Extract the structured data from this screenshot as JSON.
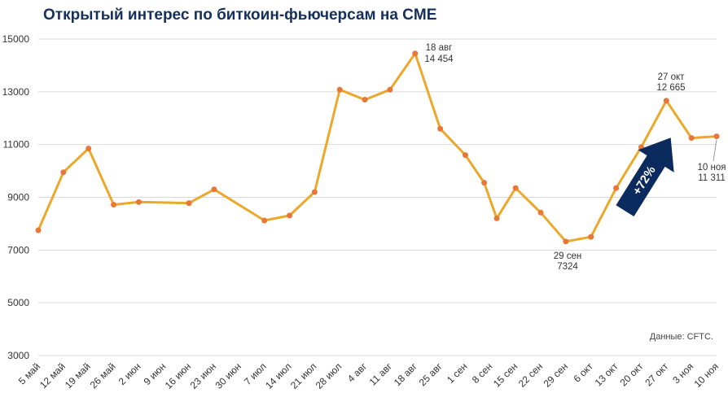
{
  "chart_data": {
    "type": "line",
    "title": "Открытый интерес по биткоин-фьючерсам на CME",
    "xlabel": "",
    "ylabel": "",
    "ylim": [
      3000,
      15000
    ],
    "yticks": [
      "3000",
      "5000",
      "7000",
      "9000",
      "11000",
      "13000",
      "15000"
    ],
    "grid": true,
    "x_labels": [
      "5 май",
      "12 май",
      "19 май",
      "26 май",
      "2 июн",
      "9 июн",
      "16 июн",
      "23 июн",
      "30 июн",
      "7 июл",
      "14 июл",
      "21 июл",
      "28 июл",
      "4 авг",
      "11 авг",
      "18 авг",
      "25 авг",
      "1 сен",
      "8 сен",
      "15 сен",
      "22 сен",
      "29 сен",
      "6 окт",
      "13 окт",
      "20 окт",
      "27 окт",
      "3 ноя",
      "10 ноя"
    ],
    "series": [
      {
        "color": "#eba82a",
        "marker_color": "#e8773a",
        "points": [
          {
            "x": 0,
            "y": 7750
          },
          {
            "x": 1,
            "y": 9950
          },
          {
            "x": 2,
            "y": 10850
          },
          {
            "x": 3,
            "y": 8720
          },
          {
            "x": 4,
            "y": 8820
          },
          {
            "x": 6,
            "y": 8780
          },
          {
            "x": 7,
            "y": 9300
          },
          {
            "x": 9,
            "y": 8120
          },
          {
            "x": 10,
            "y": 8310
          },
          {
            "x": 11,
            "y": 9200
          },
          {
            "x": 12,
            "y": 13080
          },
          {
            "x": 13,
            "y": 12700
          },
          {
            "x": 14,
            "y": 13080
          },
          {
            "x": 15,
            "y": 14454
          },
          {
            "x": 16,
            "y": 11600
          },
          {
            "x": 17,
            "y": 10600
          },
          {
            "x": 17.75,
            "y": 9550
          },
          {
            "x": 18.25,
            "y": 8200
          },
          {
            "x": 19,
            "y": 9350
          },
          {
            "x": 20,
            "y": 8420
          },
          {
            "x": 21,
            "y": 7324
          },
          {
            "x": 22,
            "y": 7500
          },
          {
            "x": 23,
            "y": 9350
          },
          {
            "x": 24,
            "y": 10900
          },
          {
            "x": 25,
            "y": 12665
          },
          {
            "x": 26,
            "y": 11250
          },
          {
            "x": 27,
            "y": 11311
          }
        ]
      }
    ],
    "annotations": [
      {
        "date": "18 авг",
        "value": "14 454"
      },
      {
        "date": "29 сен",
        "value": "7324"
      },
      {
        "date": "27 окт",
        "value": "12 665"
      },
      {
        "date": "10 ноя",
        "value": "11 311"
      }
    ],
    "arrow_label": "+72%",
    "arrow_color": "#0b2a5e",
    "source": "Данные: CFTC."
  }
}
